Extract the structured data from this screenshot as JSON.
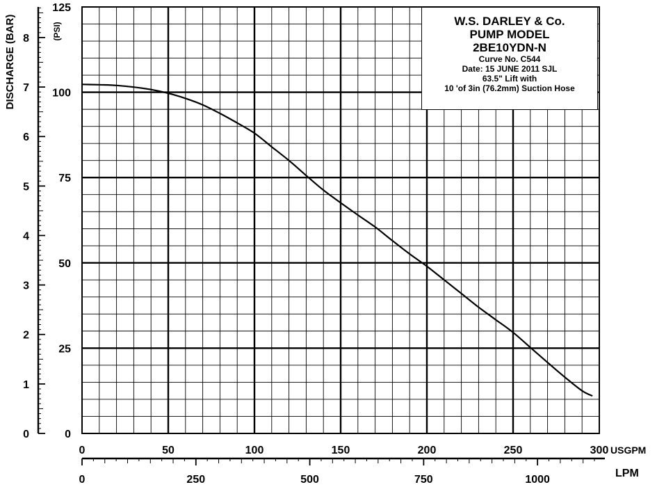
{
  "chart_data": {
    "type": "line",
    "x_unit_primary": "USGPM",
    "x_unit_secondary": "LPM",
    "y_unit_primary": "(PSI)",
    "y_label_secondary": "DISCHARGE (BAR)",
    "xlim": [
      0,
      300
    ],
    "ylim": [
      0,
      125
    ],
    "x_ticks": [
      "0",
      "50",
      "100",
      "150",
      "200",
      "250",
      "300"
    ],
    "y_ticks": [
      "0",
      "25",
      "50",
      "75",
      "100",
      "125"
    ],
    "lpm_ticks": [
      "0",
      "250",
      "500",
      "750",
      "1000"
    ],
    "bar_ticks": [
      "0",
      "1",
      "2",
      "3",
      "4",
      "5",
      "6",
      "7",
      "8"
    ],
    "grid": true,
    "series": [
      {
        "x": [
          0,
          10,
          20,
          30,
          40,
          50,
          60,
          70,
          80,
          90,
          100,
          110,
          120,
          130,
          140,
          150,
          160,
          170,
          180,
          190,
          200,
          210,
          220,
          230,
          240,
          250,
          260,
          270,
          280,
          290,
          296
        ],
        "y": [
          102.3,
          102.2,
          102,
          101.5,
          100.8,
          99.7,
          98.2,
          96.3,
          93.8,
          91,
          88,
          84,
          80,
          75.6,
          71.3,
          67.6,
          64,
          60.5,
          56.5,
          52.6,
          49,
          45,
          41,
          37,
          33.3,
          29.6,
          25.2,
          20.8,
          16.5,
          12.5,
          11
        ]
      }
    ]
  },
  "title_box": {
    "line1": "W.S. DARLEY & Co.",
    "line2": "PUMP MODEL",
    "line3": "2BE10YDN-N",
    "line4": "Curve No. C544",
    "line5": "Date: 15 JUNE 2011  SJL",
    "line6": "63.5\" Lift with",
    "line7": "10 'of 3in (76.2mm) Suction Hose"
  },
  "colors": {
    "ink": "#000000",
    "background": "#ffffff"
  }
}
